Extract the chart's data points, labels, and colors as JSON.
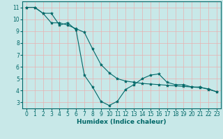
{
  "background_color": "#c8e8e8",
  "grid_color": "#e8b0b0",
  "line_color": "#006868",
  "marker_color": "#006868",
  "xlabel": "Humidex (Indice chaleur)",
  "xlabel_fontsize": 6.5,
  "tick_fontsize": 5.5,
  "xlim": [
    -0.5,
    23.5
  ],
  "ylim": [
    2.5,
    11.5
  ],
  "yticks": [
    3,
    4,
    5,
    6,
    7,
    8,
    9,
    10,
    11
  ],
  "xticks": [
    0,
    1,
    2,
    3,
    4,
    5,
    6,
    7,
    8,
    9,
    10,
    11,
    12,
    13,
    14,
    15,
    16,
    17,
    18,
    19,
    20,
    21,
    22,
    23
  ],
  "line1_x": [
    0,
    1,
    2,
    3,
    4,
    5,
    6,
    7,
    8,
    9,
    10,
    11,
    12,
    13,
    14,
    15,
    16,
    17,
    18,
    19,
    20,
    21,
    22,
    23
  ],
  "line1_y": [
    11,
    11,
    10.5,
    10.5,
    9.5,
    9.7,
    9.1,
    5.3,
    4.3,
    3.1,
    2.75,
    3.1,
    4.1,
    4.5,
    5.0,
    5.3,
    5.4,
    4.7,
    4.5,
    4.5,
    4.3,
    4.3,
    4.1,
    3.9
  ],
  "line2_x": [
    0,
    1,
    2,
    3,
    4,
    5,
    6,
    7,
    8,
    9,
    10,
    11,
    12,
    13,
    14,
    15,
    16,
    17,
    18,
    19,
    20,
    21,
    22,
    23
  ],
  "line2_y": [
    11,
    11,
    10.5,
    9.7,
    9.7,
    9.5,
    9.2,
    8.9,
    7.5,
    6.2,
    5.5,
    5.0,
    4.8,
    4.7,
    4.6,
    4.55,
    4.5,
    4.45,
    4.4,
    4.35,
    4.3,
    4.25,
    4.15,
    3.9
  ]
}
